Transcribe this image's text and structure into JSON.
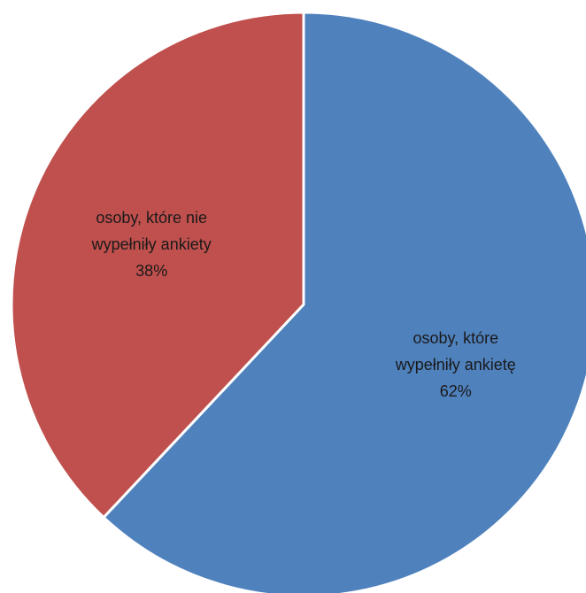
{
  "chart_data": {
    "type": "pie",
    "start_angle_deg": 0,
    "direction": "clockwise",
    "slices": [
      {
        "label_lines": [
          "osoby, które",
          "wypełniły ankietę"
        ],
        "value": 62,
        "value_label": "62%",
        "color": "#4F81BD"
      },
      {
        "label_lines": [
          "osoby, które nie",
          "wypełniły ankiety"
        ],
        "value": 38,
        "value_label": "38%",
        "color": "#C0504D"
      }
    ],
    "legend": "none",
    "data_labels": "inside"
  }
}
